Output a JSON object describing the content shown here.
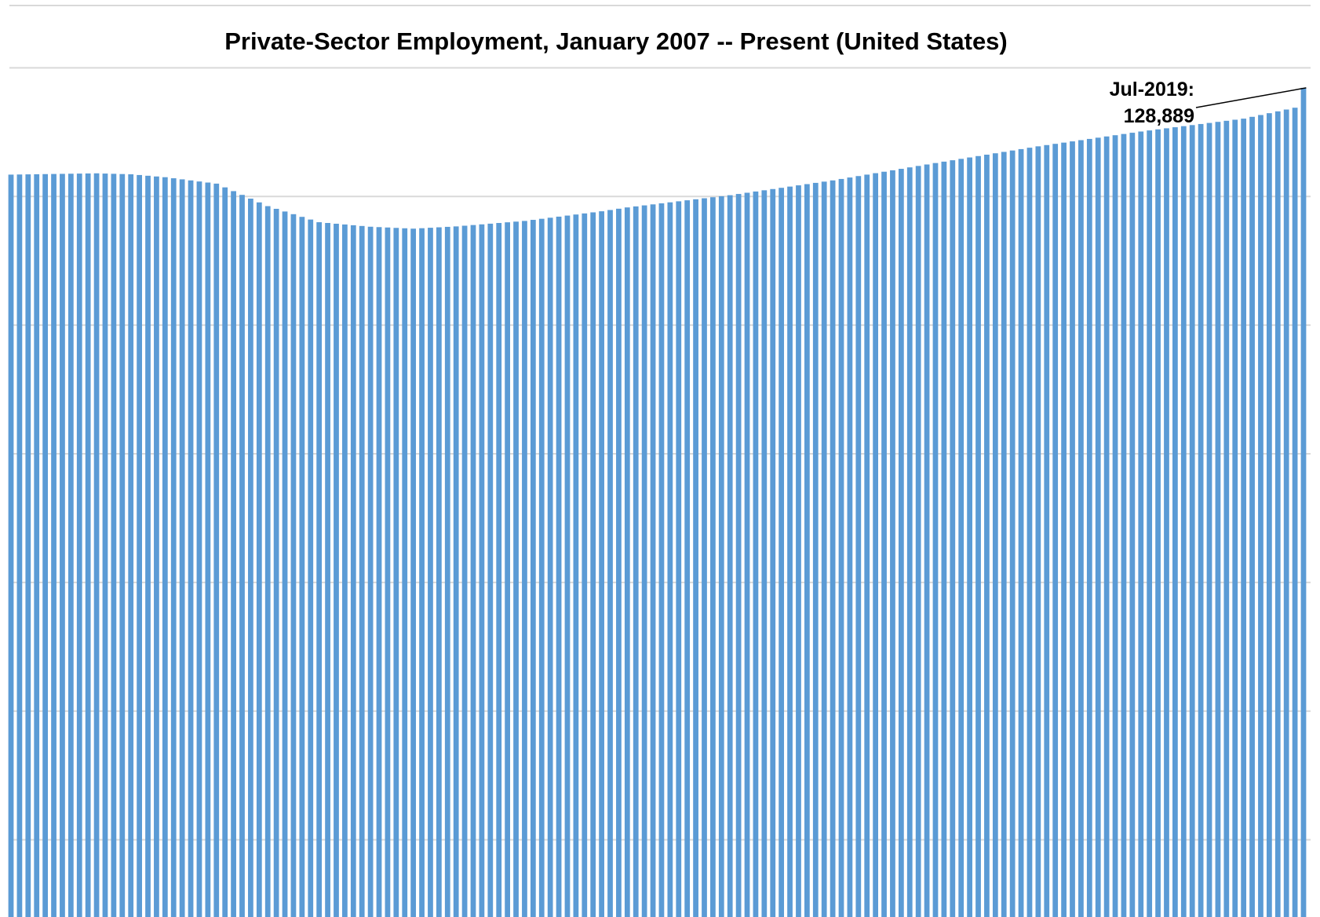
{
  "chart_data": {
    "type": "bar",
    "title": "Private-Sector Employment, January 2007 -- Present (United States)",
    "xlabel": "",
    "ylabel": "",
    "x_start": "Jan-2007",
    "x_end": "Jul-2019",
    "ylim": [
      0,
      134000
    ],
    "gridlines_y": [
      12000,
      32000,
      52000,
      72000,
      92000,
      112000,
      132000
    ],
    "grid": true,
    "legend": "none",
    "bar_color": "#5b9bd5",
    "anchors": [
      [
        0,
        115400
      ],
      [
        10,
        115600
      ],
      [
        14,
        115450
      ],
      [
        18,
        115000
      ],
      [
        24,
        114000
      ],
      [
        30,
        110500
      ],
      [
        36,
        108000
      ],
      [
        42,
        107300
      ],
      [
        47,
        107000
      ],
      [
        52,
        107350
      ],
      [
        60,
        108200
      ],
      [
        69,
        109700
      ],
      [
        72,
        110300
      ],
      [
        84,
        112200
      ],
      [
        96,
        114500
      ],
      [
        108,
        117200
      ],
      [
        120,
        119800
      ],
      [
        132,
        122100
      ],
      [
        144,
        124100
      ],
      [
        150,
        125800
      ],
      [
        151,
        128889
      ]
    ],
    "annotation": {
      "label": "Jul-2019:",
      "value": "128,889",
      "point_value": 128889
    }
  }
}
